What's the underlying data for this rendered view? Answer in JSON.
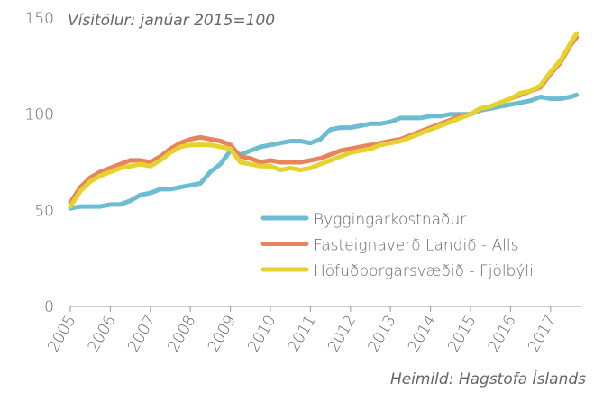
{
  "chart_data": {
    "type": "line",
    "subtitle": "Vísitölur: janúar 2015=100",
    "source": "Heimild: Hagstofa Íslands",
    "x": [
      2005,
      2005.25,
      2005.5,
      2005.75,
      2006,
      2006.25,
      2006.5,
      2006.75,
      2007,
      2007.25,
      2007.5,
      2007.75,
      2008,
      2008.25,
      2008.5,
      2008.75,
      2009,
      2009.25,
      2009.5,
      2009.75,
      2010,
      2010.25,
      2010.5,
      2010.75,
      2011,
      2011.25,
      2011.5,
      2011.75,
      2012,
      2012.25,
      2012.5,
      2012.75,
      2013,
      2013.25,
      2013.5,
      2013.75,
      2014,
      2014.25,
      2014.5,
      2014.75,
      2015,
      2015.25,
      2015.5,
      2015.75,
      2016,
      2016.25,
      2016.5,
      2016.75,
      2017,
      2017.25,
      2017.5,
      2017.65
    ],
    "series": [
      {
        "name": "Byggingarkostnaður",
        "color": "#6dbdd2",
        "values": [
          51,
          52,
          52,
          52,
          53,
          53,
          55,
          58,
          59,
          61,
          61,
          62,
          63,
          64,
          70,
          74,
          81,
          79,
          81,
          83,
          84,
          85,
          86,
          86,
          85,
          87,
          92,
          93,
          93,
          94,
          95,
          95,
          96,
          98,
          98,
          98,
          99,
          99,
          100,
          100,
          100,
          102,
          103,
          104,
          105,
          106,
          107,
          109,
          108,
          108,
          109,
          110
        ]
      },
      {
        "name": "Fasteignaverð Landið - Alls",
        "color": "#e8845c",
        "values": [
          54,
          62,
          67,
          70,
          72,
          74,
          76,
          76,
          75,
          78,
          82,
          85,
          87,
          88,
          87,
          86,
          84,
          78,
          77,
          75,
          76,
          75,
          75,
          75,
          76,
          77,
          79,
          81,
          82,
          83,
          84,
          85,
          86,
          87,
          89,
          91,
          93,
          95,
          97,
          99,
          100,
          103,
          104,
          106,
          108,
          110,
          112,
          114,
          121,
          127,
          136,
          140
        ]
      },
      {
        "name": "Höfuðborgarsvæðið - Fjölbýli",
        "color": "#e5d22c",
        "values": [
          52,
          60,
          65,
          68,
          70,
          72,
          73,
          74,
          73,
          76,
          80,
          83,
          84,
          84,
          84,
          83,
          82,
          75,
          74,
          73,
          73,
          71,
          72,
          71,
          72,
          74,
          76,
          78,
          80,
          81,
          82,
          84,
          85,
          86,
          88,
          90,
          92,
          94,
          96,
          98,
          100,
          103,
          104,
          106,
          108,
          111,
          112,
          115,
          122,
          128,
          137,
          142
        ]
      }
    ],
    "xlim": [
      2005,
      2017.77
    ],
    "xticks": [
      2005,
      2006,
      2007,
      2008,
      2009,
      2010,
      2011,
      2012,
      2013,
      2014,
      2015,
      2016,
      2017
    ],
    "ylim": [
      0,
      150
    ],
    "yticks": [
      0,
      50,
      100,
      150
    ]
  }
}
